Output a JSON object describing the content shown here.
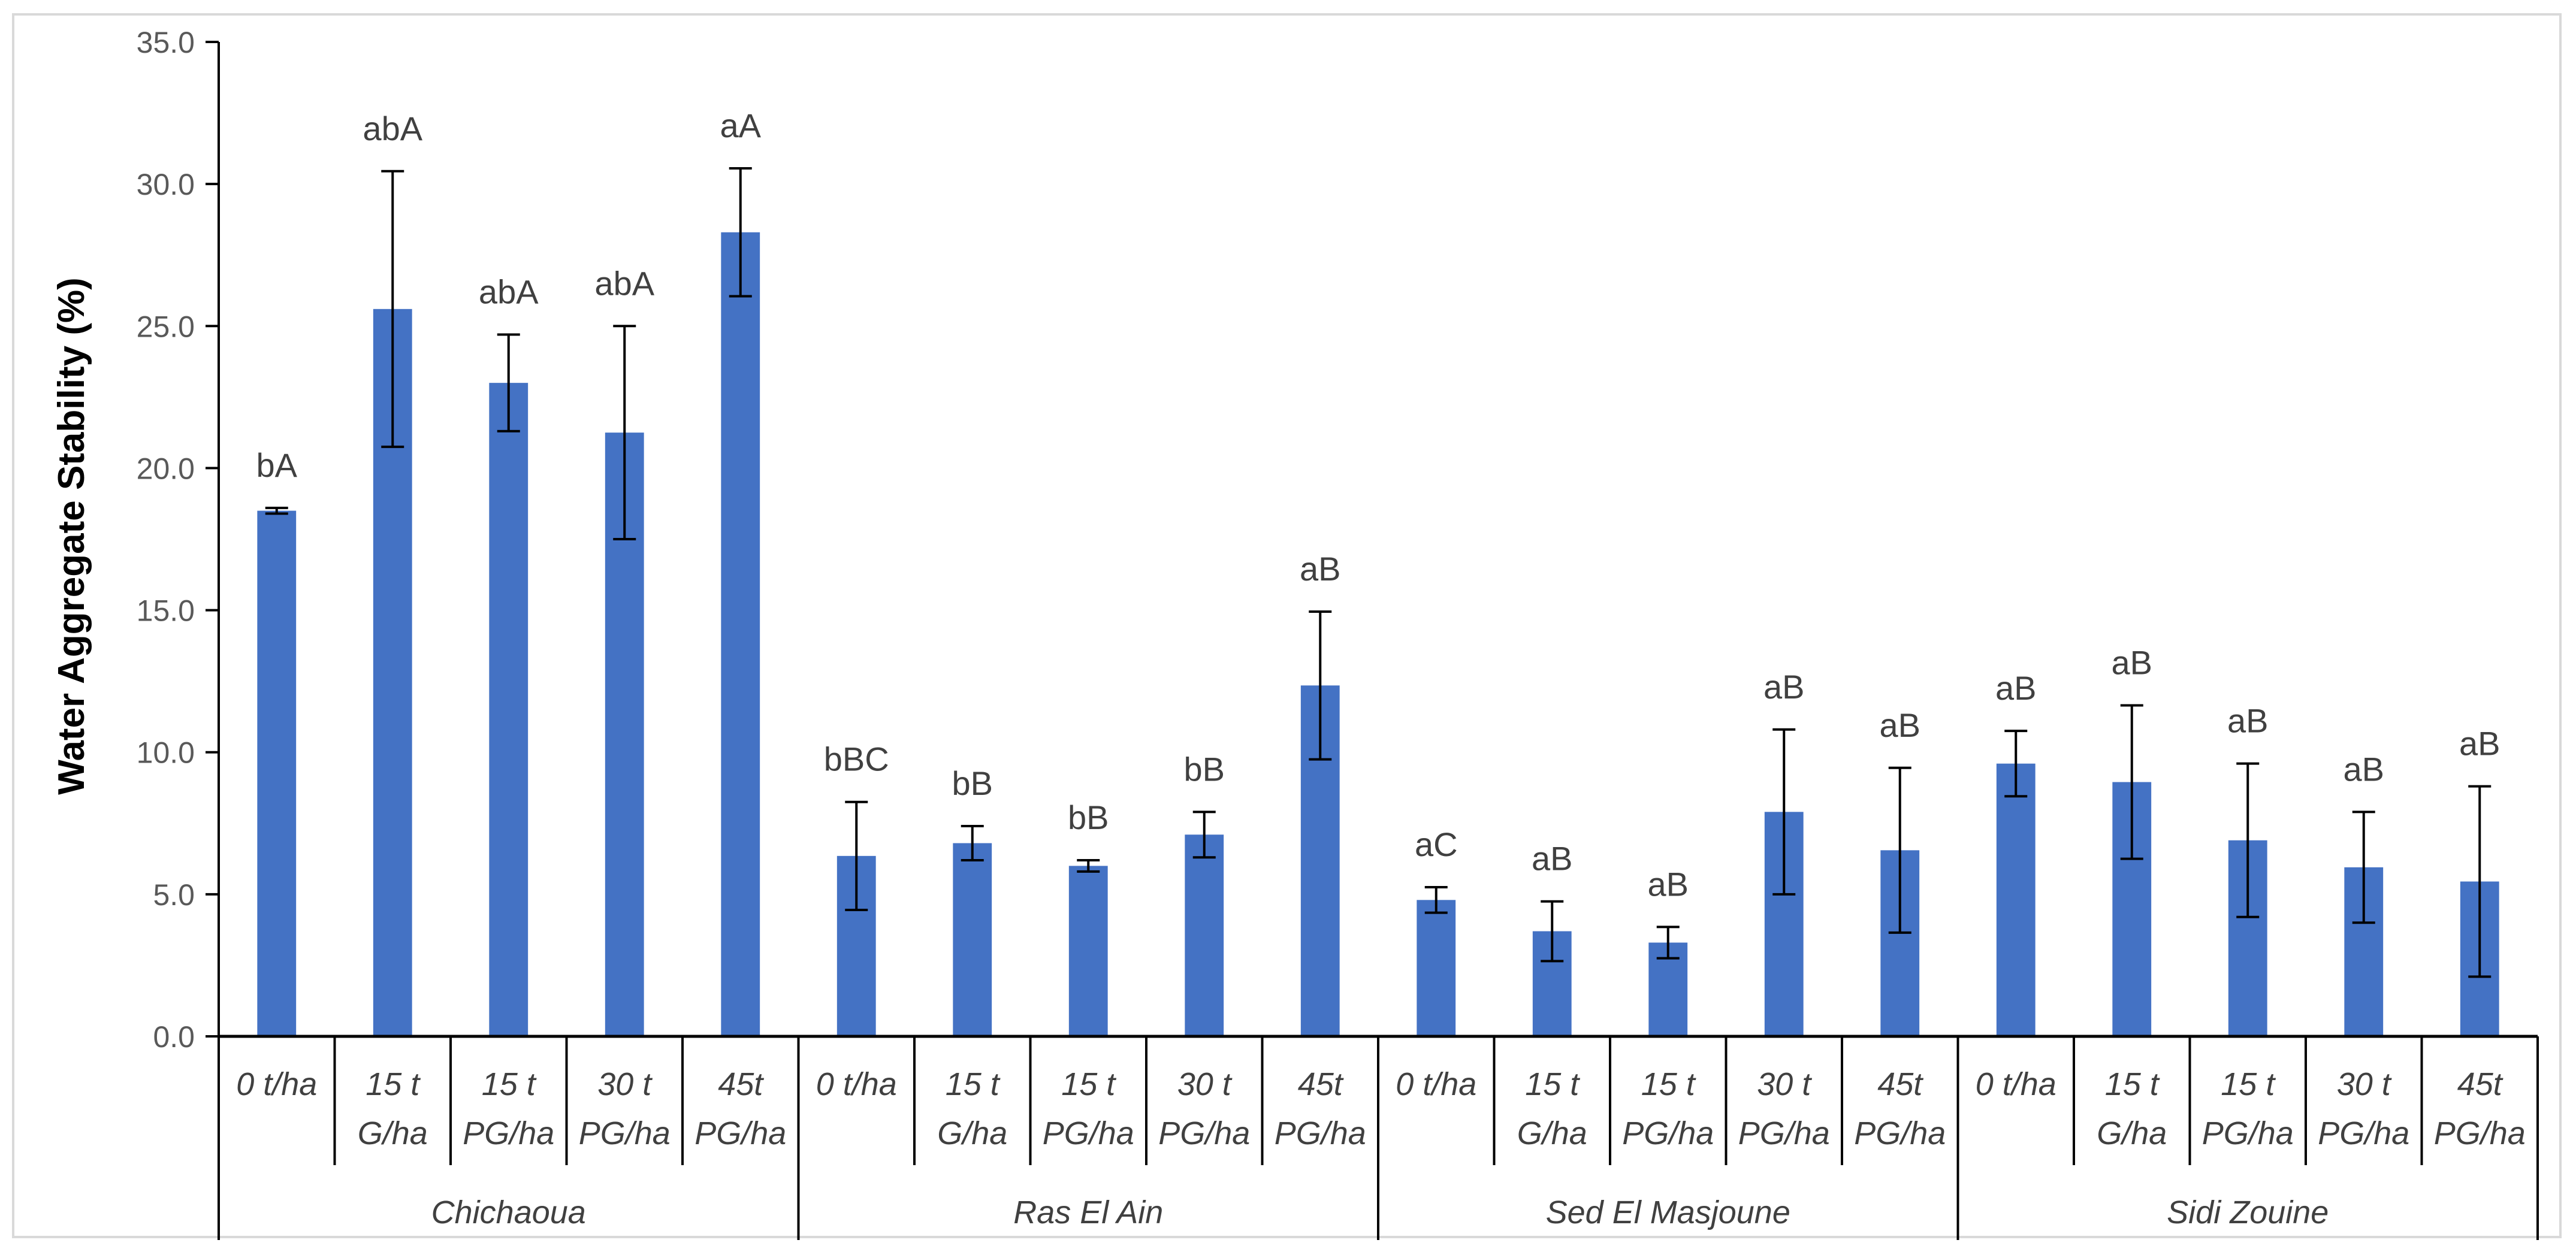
{
  "chart_data": {
    "type": "bar",
    "title": "",
    "xlabel": "",
    "ylabel": "Water Aggregate Stability (%)",
    "ylim": [
      0,
      35
    ],
    "yticks": [
      "0.0",
      "5.0",
      "10.0",
      "15.0",
      "20.0",
      "25.0",
      "30.0",
      "35.0"
    ],
    "grid": false,
    "legend": "none",
    "bar_color": "#4472c4",
    "groups": [
      {
        "name": "Chichaoua",
        "categories": [
          [
            "0 t/ha"
          ],
          [
            "15 t",
            "G/ha"
          ],
          [
            "15 t",
            "PG/ha"
          ],
          [
            "30 t",
            "PG/ha"
          ],
          [
            "45t",
            "PG/ha"
          ]
        ],
        "values": [
          18.5,
          25.6,
          23.0,
          21.25,
          28.3
        ],
        "errors": [
          0.1,
          4.85,
          1.7,
          3.75,
          2.25
        ],
        "labels": [
          "bA",
          "abA",
          "abA",
          "abA",
          "aA"
        ]
      },
      {
        "name": "Ras El Ain",
        "categories": [
          [
            "0 t/ha"
          ],
          [
            "15 t",
            "G/ha"
          ],
          [
            "15 t",
            "PG/ha"
          ],
          [
            "30 t",
            "PG/ha"
          ],
          [
            "45t",
            "PG/ha"
          ]
        ],
        "values": [
          6.35,
          6.8,
          6.0,
          7.1,
          12.35
        ],
        "errors": [
          1.9,
          0.6,
          0.2,
          0.8,
          2.6
        ],
        "labels": [
          "bBC",
          "bB",
          "bB",
          "bB",
          "aB"
        ]
      },
      {
        "name": "Sed El Masjoune",
        "categories": [
          [
            "0 t/ha"
          ],
          [
            "15 t",
            "G/ha"
          ],
          [
            "15 t",
            "PG/ha"
          ],
          [
            "30 t",
            "PG/ha"
          ],
          [
            "45t",
            "PG/ha"
          ]
        ],
        "values": [
          4.8,
          3.7,
          3.3,
          7.9,
          6.55
        ],
        "errors": [
          0.45,
          1.05,
          0.55,
          2.9,
          2.9
        ],
        "labels": [
          "aC",
          "aB",
          "aB",
          "aB",
          "aB"
        ]
      },
      {
        "name": "Sidi Zouine",
        "categories": [
          [
            "0 t/ha"
          ],
          [
            "15 t",
            "G/ha"
          ],
          [
            "15 t",
            "PG/ha"
          ],
          [
            "30 t",
            "PG/ha"
          ],
          [
            "45t",
            "PG/ha"
          ]
        ],
        "values": [
          9.6,
          8.95,
          6.9,
          5.95,
          5.45
        ],
        "errors": [
          1.15,
          2.7,
          2.7,
          1.95,
          3.35
        ],
        "labels": [
          "aB",
          "aB",
          "aB",
          "aB",
          "aB"
        ]
      }
    ]
  }
}
